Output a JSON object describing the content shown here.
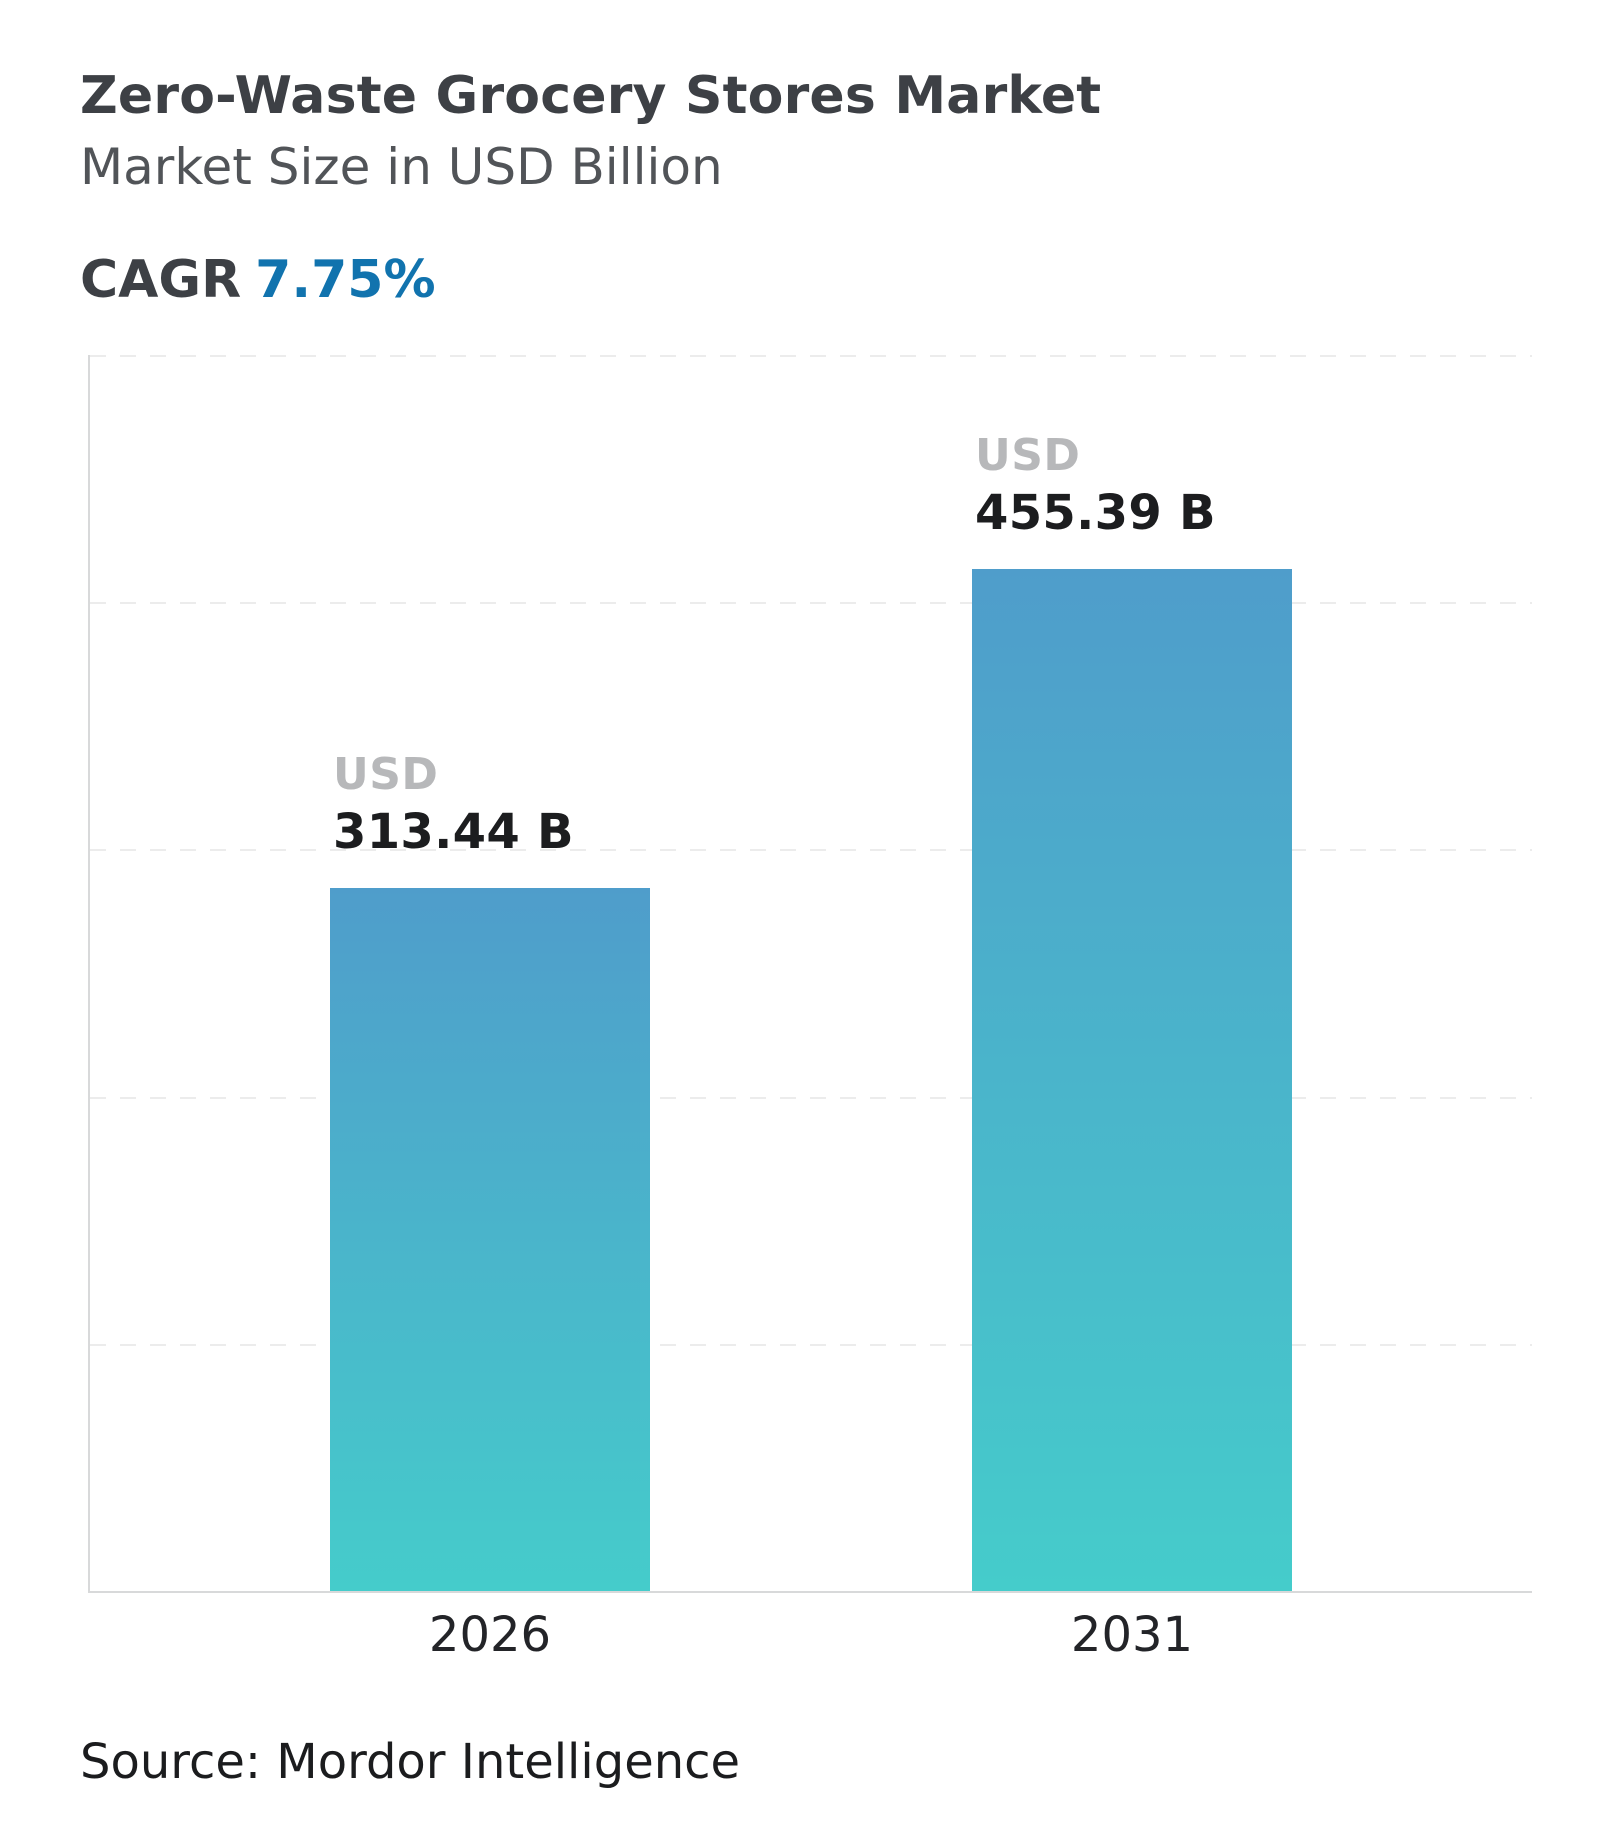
{
  "header": {
    "title": "Zero-Waste Grocery Stores Market",
    "subtitle": "Market Size in USD Billion",
    "cagr_label": "CAGR",
    "cagr_value": "7.75%"
  },
  "chart_data": {
    "type": "bar",
    "title": "Zero-Waste Grocery Stores Market",
    "subtitle": "Market Size in USD Billion",
    "cagr": "7.75%",
    "unit": "USD Billion",
    "categories": [
      "2026",
      "2031"
    ],
    "values": [
      313.44,
      455.39
    ],
    "points": [
      {
        "category": "2026",
        "value": 313.44,
        "currency_label": "USD",
        "value_label": "313.44 B"
      },
      {
        "category": "2031",
        "value": 455.39,
        "currency_label": "USD",
        "value_label": "455.39 B"
      }
    ],
    "xlabel": "",
    "ylabel": "Market Size in USD Billion",
    "ylim": [
      0,
      551
    ],
    "grid": "horizontal-dashed",
    "legend_position": "none"
  },
  "colors": {
    "accent_blue": "#1173ae",
    "bar_gradient_top": "#4f9dcb",
    "bar_gradient_bottom": "#45cccb",
    "title_text": "#3d4045",
    "subtitle_text": "#515458",
    "usd_label": "#b7b8ba",
    "value_label": "#1c1d1f",
    "axis_line": "#d8d9da",
    "gridline": "#ececec"
  },
  "footer": {
    "source": "Source: Mordor Intelligence"
  }
}
